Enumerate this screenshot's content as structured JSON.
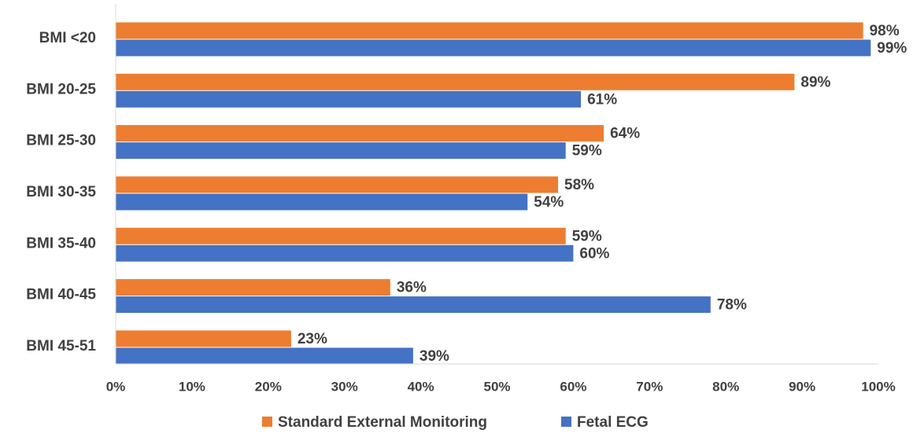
{
  "chart_data": {
    "type": "bar",
    "orientation": "horizontal",
    "categories": [
      "BMI <20",
      "BMI 20-25",
      "BMI 25-30",
      "BMI 30-35",
      "BMI 35-40",
      "BMI 40-45",
      "BMI 45-51"
    ],
    "series": [
      {
        "name": "Standard External Monitoring",
        "color": "#ED7D31",
        "values": [
          98,
          89,
          64,
          58,
          59,
          36,
          23
        ],
        "value_labels": [
          "98%",
          "89%",
          "64%",
          "58%",
          "59%",
          "36%",
          "23%"
        ]
      },
      {
        "name": "Fetal ECG",
        "color": "#4472C4",
        "values": [
          99,
          61,
          59,
          54,
          60,
          78,
          39
        ],
        "value_labels": [
          "99%",
          "61%",
          "59%",
          "54%",
          "60%",
          "78%",
          "39%"
        ]
      }
    ],
    "xlim": [
      0,
      100
    ],
    "xticks": [
      {
        "value": 0,
        "label": "0%"
      },
      {
        "value": 10,
        "label": "10%"
      },
      {
        "value": 20,
        "label": "20%"
      },
      {
        "value": 30,
        "label": "30%"
      },
      {
        "value": 40,
        "label": "40%"
      },
      {
        "value": 50,
        "label": "50%"
      },
      {
        "value": 60,
        "label": "60%"
      },
      {
        "value": 70,
        "label": "70%"
      },
      {
        "value": 80,
        "label": "80%"
      },
      {
        "value": 90,
        "label": "90%"
      },
      {
        "value": 100,
        "label": "100%"
      }
    ],
    "legend": "bottom"
  }
}
